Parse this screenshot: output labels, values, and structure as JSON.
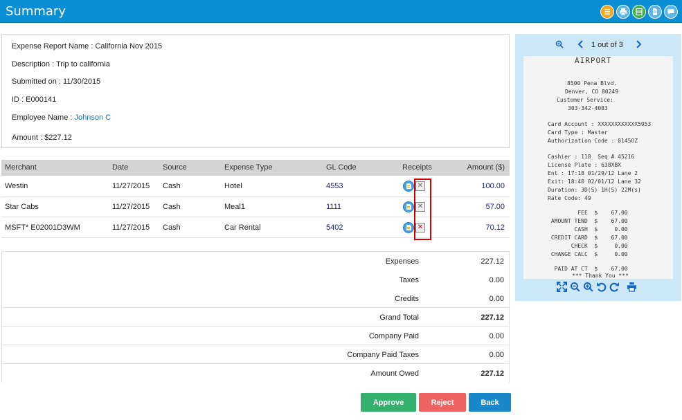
{
  "header": {
    "title": "Summary",
    "icons": [
      "list-icon",
      "print-icon",
      "spreadsheet-icon",
      "document-icon",
      "comment-icon"
    ]
  },
  "report": {
    "name_line": "Expense Report Name : California Nov 2015",
    "description_line": "Description : Trip to california",
    "submitted_line": "Submitted on : 11/30/2015",
    "id_line": "ID : E000141",
    "employee_label": "Employee Name : ",
    "employee_name": "Johnson C",
    "amount_line": "Amount : $227.12"
  },
  "table": {
    "headers": {
      "merchant": "Merchant",
      "date": "Date",
      "source": "Source",
      "expense_type": "Expense Type",
      "gl_code": "GL Code",
      "receipts": "Receipts",
      "amount": "Amount ($)"
    },
    "rows": [
      {
        "merchant": "Westin",
        "date": "11/27/2015",
        "source": "Cash",
        "expense_type": "Hotel",
        "gl_code": "4553",
        "amount": "100.00"
      },
      {
        "merchant": "Star Cabs",
        "date": "11/27/2015",
        "source": "Cash",
        "expense_type": "Meal1",
        "gl_code": "1111",
        "amount": "57.00"
      },
      {
        "merchant": "MSFT* E02001D3WM",
        "date": "11/27/2015",
        "source": "Cash",
        "expense_type": "Car Rental",
        "gl_code": "5402",
        "amount": "70.12"
      }
    ]
  },
  "totals": {
    "expenses": {
      "label": "Expenses",
      "value": "227.12"
    },
    "taxes": {
      "label": "Taxes",
      "value": "0.00"
    },
    "credits": {
      "label": "Credits",
      "value": "0.00"
    },
    "grand_total": {
      "label": "Grand Total",
      "value": "227.12"
    },
    "company_paid": {
      "label": "Company Paid",
      "value": "0.00"
    },
    "company_paid_taxes": {
      "label": "Company Paid Taxes",
      "value": "0.00"
    },
    "amount_owed": {
      "label": "Amount Owed",
      "value": "227.12"
    }
  },
  "buttons": {
    "approve": "Approve",
    "reject": "Reject",
    "back": "Back"
  },
  "viewer": {
    "page_info": "1 out of 3",
    "receipt_lines": {
      "title": "AIRPORT",
      "l1": "8500 Pena Blvd.",
      "l2": "Denver, CO 80249",
      "l3": "Customer Service:",
      "l4": "303-342-4083",
      "l5": "Card Account : XXXXXXXXXXXX5953",
      "l6": "Card Type : Master",
      "l7": "Authorization Code : 0145OZ",
      "l8": "Cashier : 118  Seq # 45216",
      "l9": "License Plate : 638XBX",
      "l10": "Ent : 17:18 01/29/12 Lane 2",
      "l11": "Exit: 18:40 02/01/12 Lane 32",
      "l12": "Duration: 3D(S) 1H(S) 22M(s)",
      "l13": "Rate Code: 49",
      "l14": "         FEE  $    67.00",
      "l15": " AMOUNT TEND  $    67.00",
      "l16": "        CASH  $     0.00",
      "l17": " CREDIT CARD  $    67.00",
      "l18": "       CHECK  $     0.00",
      "l19": " CHANGE CALC  $     0.00",
      "l20": "  PAID AT CT  $    67.00",
      "l21": "*** Thank You ***"
    }
  },
  "colors": {
    "header_bg": "#0a8fd6",
    "approve": "#33b06e",
    "reject": "#ee6360",
    "back": "#1887cc",
    "link": "#1a6fb5",
    "highlight": "#d50000"
  }
}
